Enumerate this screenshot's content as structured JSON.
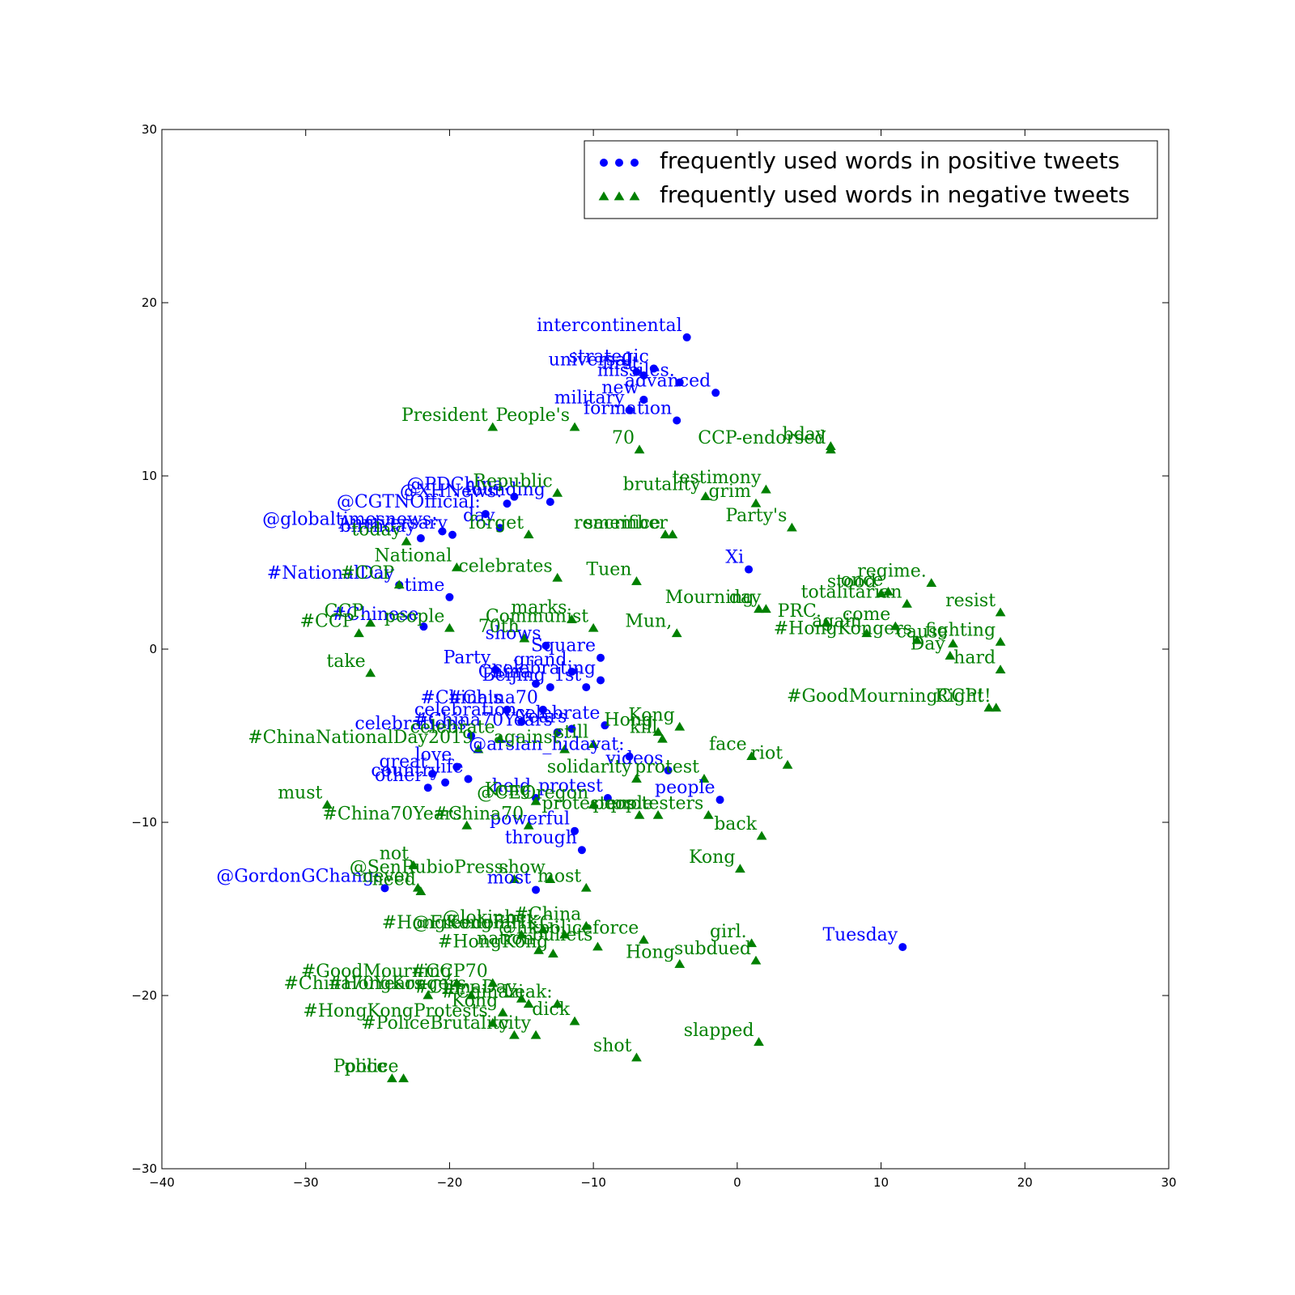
{
  "chart_data": {
    "type": "scatter",
    "title": "",
    "xlabel": "",
    "ylabel": "",
    "xlim": [
      -40,
      30
    ],
    "ylim": [
      -30,
      30
    ],
    "xticks": [
      -40,
      -30,
      -20,
      -10,
      0,
      10,
      20,
      30
    ],
    "yticks": [
      -30,
      -20,
      -10,
      0,
      10,
      20,
      30
    ],
    "x_tick_labels": [
      "−40",
      "−30",
      "−20",
      "−10",
      "0",
      "10",
      "20",
      "30"
    ],
    "y_tick_labels": [
      "−30",
      "−20",
      "−10",
      "0",
      "10",
      "20",
      "30"
    ],
    "grid": false,
    "legend_position": "top-right",
    "series": [
      {
        "name": "frequently used words in positive tweets",
        "marker": "circle",
        "color": "#0000ff",
        "points": [
          {
            "x": -3.5,
            "y": 18.0,
            "label": "intercontinental"
          },
          {
            "x": -5.8,
            "y": 16.2,
            "label": "strategic"
          },
          {
            "x": -7.0,
            "y": 16.0,
            "label": "universal"
          },
          {
            "x": -6.5,
            "y": 15.8,
            "label": "first"
          },
          {
            "x": -4.0,
            "y": 15.4,
            "label": "missiles."
          },
          {
            "x": -1.5,
            "y": 14.8,
            "label": "advanced"
          },
          {
            "x": -6.5,
            "y": 14.4,
            "label": "new"
          },
          {
            "x": -7.5,
            "y": 13.8,
            "label": "military"
          },
          {
            "x": -4.2,
            "y": 13.2,
            "label": "formation"
          },
          {
            "x": -15.5,
            "y": 8.8,
            "label": "@PDChina:"
          },
          {
            "x": -16.0,
            "y": 8.4,
            "label": "@XHNews:"
          },
          {
            "x": -13.0,
            "y": 8.5,
            "label": "founding"
          },
          {
            "x": -17.5,
            "y": 7.8,
            "label": "@CGTNOfficial:"
          },
          {
            "x": -20.5,
            "y": 6.8,
            "label": "@globaltimesnews:"
          },
          {
            "x": -19.8,
            "y": 6.6,
            "label": "Anniversary"
          },
          {
            "x": -22.0,
            "y": 6.4,
            "label": "birthday"
          },
          {
            "x": -16.5,
            "y": 7.0,
            "label": "day"
          },
          {
            "x": 0.8,
            "y": 4.6,
            "label": "Xi"
          },
          {
            "x": -23.5,
            "y": 3.7,
            "label": "#NationalDay"
          },
          {
            "x": -20.0,
            "y": 3.0,
            "label": "time"
          },
          {
            "x": -21.8,
            "y": 1.3,
            "label": "#Chinese"
          },
          {
            "x": -13.3,
            "y": 0.2,
            "label": "shows"
          },
          {
            "x": -9.5,
            "y": -0.5,
            "label": "Square"
          },
          {
            "x": -16.8,
            "y": -1.2,
            "label": "Party"
          },
          {
            "x": -11.5,
            "y": -1.3,
            "label": "grand"
          },
          {
            "x": -14.0,
            "y": -2.0,
            "label": "China"
          },
          {
            "x": -13.0,
            "y": -2.2,
            "label": "Beijing"
          },
          {
            "x": -10.5,
            "y": -2.2,
            "label": "1st"
          },
          {
            "x": -9.5,
            "y": -1.8,
            "label": "celebrating"
          },
          {
            "x": -16.0,
            "y": -3.5,
            "label": "#China's"
          },
          {
            "x": -13.5,
            "y": -3.5,
            "label": "#China70"
          },
          {
            "x": -15.0,
            "y": -4.2,
            "label": "celebration"
          },
          {
            "x": -12.5,
            "y": -4.8,
            "label": "#China70Years"
          },
          {
            "x": -11.5,
            "y": -4.6,
            "label": "Years"
          },
          {
            "x": -9.2,
            "y": -4.4,
            "label": "celebrate"
          },
          {
            "x": -18.5,
            "y": -5.0,
            "label": "celebrations"
          },
          {
            "x": -7.5,
            "y": -6.2,
            "label": "@arslan_hidayat:"
          },
          {
            "x": -19.5,
            "y": -6.8,
            "label": "love"
          },
          {
            "x": -21.2,
            "y": -7.2,
            "label": "great"
          },
          {
            "x": -18.7,
            "y": -7.5,
            "label": "life"
          },
          {
            "x": -20.3,
            "y": -7.7,
            "label": "country"
          },
          {
            "x": -21.5,
            "y": -8.0,
            "label": "other"
          },
          {
            "x": -4.8,
            "y": -7.0,
            "label": "videos"
          },
          {
            "x": -14.0,
            "y": -8.6,
            "label": "held"
          },
          {
            "x": -9.0,
            "y": -8.6,
            "label": "protest"
          },
          {
            "x": -1.2,
            "y": -8.7,
            "label": "people"
          },
          {
            "x": -11.3,
            "y": -10.5,
            "label": "powerful"
          },
          {
            "x": -10.8,
            "y": -11.6,
            "label": "through"
          },
          {
            "x": -24.5,
            "y": -13.8,
            "label": "@GordonGChang:"
          },
          {
            "x": -14.0,
            "y": -13.9,
            "label": "most"
          },
          {
            "x": 11.5,
            "y": -17.2,
            "label": "Tuesday"
          }
        ]
      },
      {
        "name": "frequently used words in negative tweets",
        "marker": "triangle",
        "color": "#008000",
        "points": [
          {
            "x": -17.0,
            "y": 12.8,
            "label": "President"
          },
          {
            "x": -11.3,
            "y": 12.8,
            "label": "People's"
          },
          {
            "x": -6.8,
            "y": 11.5,
            "label": "70"
          },
          {
            "x": 6.5,
            "y": 11.5,
            "label": "CCP-endorsed"
          },
          {
            "x": 6.5,
            "y": 11.7,
            "label": "bday"
          },
          {
            "x": -2.2,
            "y": 8.8,
            "label": "brutality"
          },
          {
            "x": 2.0,
            "y": 9.2,
            "label": "testimony"
          },
          {
            "x": 1.3,
            "y": 8.4,
            "label": "grim"
          },
          {
            "x": -12.5,
            "y": 9.0,
            "label": "Republic"
          },
          {
            "x": -5.0,
            "y": 6.6,
            "label": "sacrifice"
          },
          {
            "x": -4.5,
            "y": 6.6,
            "label": "remember"
          },
          {
            "x": -14.5,
            "y": 6.6,
            "label": "forget"
          },
          {
            "x": 3.8,
            "y": 7.0,
            "label": "Party's"
          },
          {
            "x": -23.0,
            "y": 6.2,
            "label": "today"
          },
          {
            "x": -19.5,
            "y": 4.7,
            "label": "National"
          },
          {
            "x": -12.5,
            "y": 4.1,
            "label": "celebrates"
          },
          {
            "x": -7.0,
            "y": 3.9,
            "label": "Tuen"
          },
          {
            "x": -23.5,
            "y": 3.7,
            "label": "#CCP"
          },
          {
            "x": 1.5,
            "y": 2.3,
            "label": "Mourning"
          },
          {
            "x": 2.0,
            "y": 2.3,
            "label": "day"
          },
          {
            "x": 13.5,
            "y": 3.8,
            "label": "regime."
          },
          {
            "x": 11.8,
            "y": 2.6,
            "label": "totalitarian"
          },
          {
            "x": 10.5,
            "y": 3.3,
            "label": "once"
          },
          {
            "x": 10.0,
            "y": 3.2,
            "label": "stood"
          },
          {
            "x": 18.3,
            "y": 2.1,
            "label": "resist"
          },
          {
            "x": -25.5,
            "y": 1.5,
            "label": "CCP."
          },
          {
            "x": -11.5,
            "y": 1.7,
            "label": "marks"
          },
          {
            "x": -10.0,
            "y": 1.2,
            "label": "Communist"
          },
          {
            "x": 6.2,
            "y": 1.5,
            "label": "PRC."
          },
          {
            "x": 11.0,
            "y": 1.3,
            "label": "come"
          },
          {
            "x": 9.0,
            "y": 0.9,
            "label": "again"
          },
          {
            "x": -26.3,
            "y": 0.9,
            "label": "#CCP"
          },
          {
            "x": -20.0,
            "y": 1.2,
            "label": "people"
          },
          {
            "x": -14.8,
            "y": 0.6,
            "label": "70th"
          },
          {
            "x": -4.2,
            "y": 0.9,
            "label": "Mun,"
          },
          {
            "x": 15.0,
            "y": 0.3,
            "label": "cause"
          },
          {
            "x": 18.3,
            "y": 0.4,
            "label": "fighting"
          },
          {
            "x": 14.8,
            "y": -0.4,
            "label": "Day"
          },
          {
            "x": 12.5,
            "y": 0.5,
            "label": "#HongKongers"
          },
          {
            "x": 18.3,
            "y": -1.2,
            "label": "hard"
          },
          {
            "x": -25.5,
            "y": -1.4,
            "label": "take"
          },
          {
            "x": 17.5,
            "y": -3.4,
            "label": "#GoodMourningCCP!"
          },
          {
            "x": 18.0,
            "y": -3.4,
            "label": "Right!"
          },
          {
            "x": -5.5,
            "y": -4.8,
            "label": "Hong"
          },
          {
            "x": -4.0,
            "y": -4.5,
            "label": "Kong"
          },
          {
            "x": -16.5,
            "y": -5.2,
            "label": "celebrate"
          },
          {
            "x": -18.0,
            "y": -5.8,
            "label": "#ChinaNationalDay2019"
          },
          {
            "x": -12.0,
            "y": -5.8,
            "label": "against"
          },
          {
            "x": -10.0,
            "y": -5.5,
            "label": "still"
          },
          {
            "x": -5.2,
            "y": -5.2,
            "label": "kill"
          },
          {
            "x": 1.0,
            "y": -6.2,
            "label": "face"
          },
          {
            "x": 3.5,
            "y": -6.7,
            "label": "riot"
          },
          {
            "x": -7.0,
            "y": -7.5,
            "label": "solidarity"
          },
          {
            "x": -2.3,
            "y": -7.5,
            "label": "protest"
          },
          {
            "x": -28.5,
            "y": -9.0,
            "label": "must"
          },
          {
            "x": -14.0,
            "y": -8.8,
            "label": "Kong"
          },
          {
            "x": -10.0,
            "y": -9.0,
            "label": "@CEOregon"
          },
          {
            "x": -6.8,
            "y": -9.6,
            "label": "protesters"
          },
          {
            "x": -5.5,
            "y": -9.6,
            "label": "people"
          },
          {
            "x": -2.0,
            "y": -9.6,
            "label": "protesters"
          },
          {
            "x": -18.8,
            "y": -10.2,
            "label": "#China70Years"
          },
          {
            "x": -14.5,
            "y": -10.2,
            "label": "#China70"
          },
          {
            "x": 1.7,
            "y": -10.8,
            "label": "back"
          },
          {
            "x": 0.2,
            "y": -12.7,
            "label": "Kong"
          },
          {
            "x": -22.5,
            "y": -12.5,
            "label": "not"
          },
          {
            "x": -22.2,
            "y": -13.8,
            "label": "never"
          },
          {
            "x": -22.0,
            "y": -14.0,
            "label": "need"
          },
          {
            "x": -15.5,
            "y": -13.3,
            "label": "@SenRubioPress:"
          },
          {
            "x": -13.0,
            "y": -13.3,
            "label": "show"
          },
          {
            "x": -10.5,
            "y": -13.8,
            "label": "most"
          },
          {
            "x": -13.5,
            "y": -16.2,
            "label": "@lokinhei:"
          },
          {
            "x": -10.5,
            "y": -16.0,
            "label": "#China"
          },
          {
            "x": -12.0,
            "y": -16.5,
            "label": "@FreedomHKG:"
          },
          {
            "x": -9.7,
            "y": -17.2,
            "label": "bullets"
          },
          {
            "x": -6.5,
            "y": -16.8,
            "label": "@hkpoliceforce"
          },
          {
            "x": 1.0,
            "y": -17.0,
            "label": "girl."
          },
          {
            "x": -15.0,
            "y": -16.5,
            "label": "#HongKongFP"
          },
          {
            "x": -13.8,
            "y": -17.4,
            "label": "nation"
          },
          {
            "x": -12.8,
            "y": -17.6,
            "label": "#HongKong"
          },
          {
            "x": -4.0,
            "y": -18.2,
            "label": "Hong"
          },
          {
            "x": 1.3,
            "y": -18.0,
            "label": "subdued"
          },
          {
            "x": -19.5,
            "y": -19.3,
            "label": "#GoodMourning"
          },
          {
            "x": -17.0,
            "y": -19.3,
            "label": "#CCP70"
          },
          {
            "x": -21.5,
            "y": -20.0,
            "label": "#China70Years"
          },
          {
            "x": -18.5,
            "y": -20.0,
            "label": "#HongKongers"
          },
          {
            "x": -15.0,
            "y": -20.2,
            "label": "#ChinaDay"
          },
          {
            "x": -12.5,
            "y": -20.5,
            "label": "Leak:"
          },
          {
            "x": -14.5,
            "y": -20.5,
            "label": "#Chinazi"
          },
          {
            "x": -16.3,
            "y": -21.0,
            "label": "Kong"
          },
          {
            "x": -11.3,
            "y": -21.5,
            "label": "dick"
          },
          {
            "x": -17.0,
            "y": -21.6,
            "label": "#HongKongProtests"
          },
          {
            "x": -15.5,
            "y": -22.3,
            "label": "#PoliceBrutality"
          },
          {
            "x": -14.0,
            "y": -22.3,
            "label": "city"
          },
          {
            "x": -7.0,
            "y": -23.6,
            "label": "shot"
          },
          {
            "x": 1.5,
            "y": -22.7,
            "label": "slapped"
          },
          {
            "x": -24.0,
            "y": -24.8,
            "label": "Police"
          },
          {
            "x": -23.2,
            "y": -24.8,
            "label": "police"
          }
        ]
      }
    ]
  }
}
